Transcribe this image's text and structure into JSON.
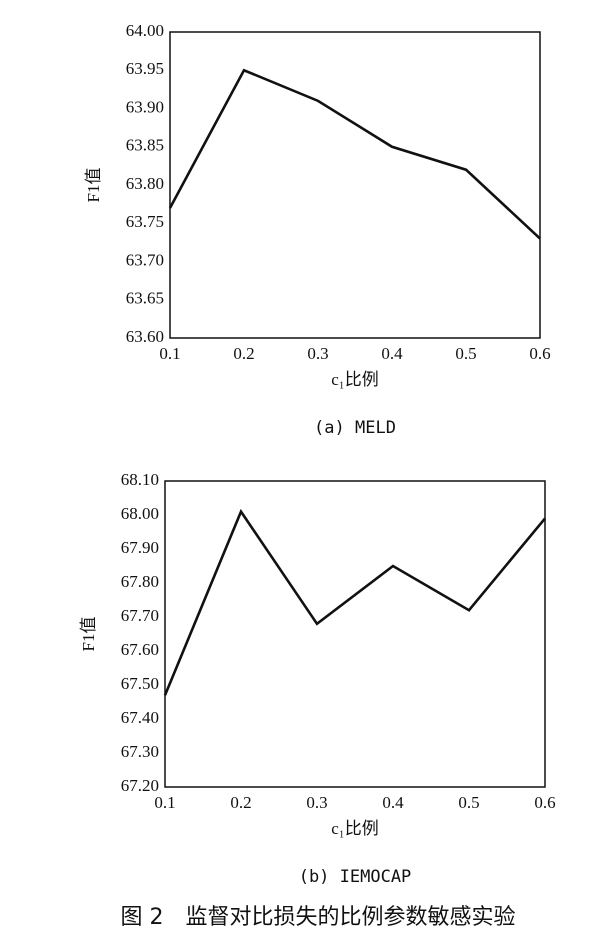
{
  "chart_data": [
    {
      "type": "line",
      "caption": "(a) MELD",
      "xlabel": "c₁比例",
      "ylabel": "F1值",
      "x": [
        0.1,
        0.2,
        0.3,
        0.4,
        0.5,
        0.6
      ],
      "series": [
        {
          "name": "MELD",
          "color": "#111111",
          "values": [
            63.77,
            63.95,
            63.91,
            63.85,
            63.82,
            63.73
          ]
        }
      ],
      "xlim": [
        0.1,
        0.6
      ],
      "xticks": [
        0.1,
        0.2,
        0.3,
        0.4,
        0.5,
        0.6
      ],
      "ylim": [
        63.6,
        64.0
      ],
      "yticks": [
        {
          "value": 63.6,
          "label": "63.60"
        },
        {
          "value": 63.65,
          "label": "63.65"
        },
        {
          "value": 63.7,
          "label": "63.70"
        },
        {
          "value": 63.75,
          "label": "63.75"
        },
        {
          "value": 63.8,
          "label": "63.80"
        },
        {
          "value": 63.85,
          "label": "63.85"
        },
        {
          "value": 63.9,
          "label": "63.90"
        },
        {
          "value": 63.95,
          "label": "63.95"
        },
        {
          "value": 64.0,
          "label": "64.00"
        }
      ],
      "grid": false
    },
    {
      "type": "line",
      "caption": "(b) IEMOCAP",
      "xlabel": "c₁比例",
      "ylabel": "F1值",
      "x": [
        0.1,
        0.2,
        0.3,
        0.4,
        0.5,
        0.6
      ],
      "series": [
        {
          "name": "IEMOCAP",
          "color": "#111111",
          "values": [
            67.47,
            68.01,
            67.68,
            67.85,
            67.72,
            67.99
          ]
        }
      ],
      "xlim": [
        0.1,
        0.6
      ],
      "xticks": [
        0.1,
        0.2,
        0.3,
        0.4,
        0.5,
        0.6
      ],
      "ylim": [
        67.2,
        68.1
      ],
      "yticks": [
        {
          "value": 67.2,
          "label": "67.20"
        },
        {
          "value": 67.3,
          "label": "67.30"
        },
        {
          "value": 67.4,
          "label": "67.40"
        },
        {
          "value": 67.5,
          "label": "67.50"
        },
        {
          "value": 67.6,
          "label": "67.60"
        },
        {
          "value": 67.7,
          "label": "67.70"
        },
        {
          "value": 67.8,
          "label": "67.80"
        },
        {
          "value": 67.9,
          "label": "67.90"
        },
        {
          "value": 68.0,
          "label": "68.00"
        },
        {
          "value": 68.1,
          "label": "68.10"
        }
      ],
      "grid": false
    }
  ],
  "figure_caption": "图 2　监督对比损失的比例参数敏感实验"
}
